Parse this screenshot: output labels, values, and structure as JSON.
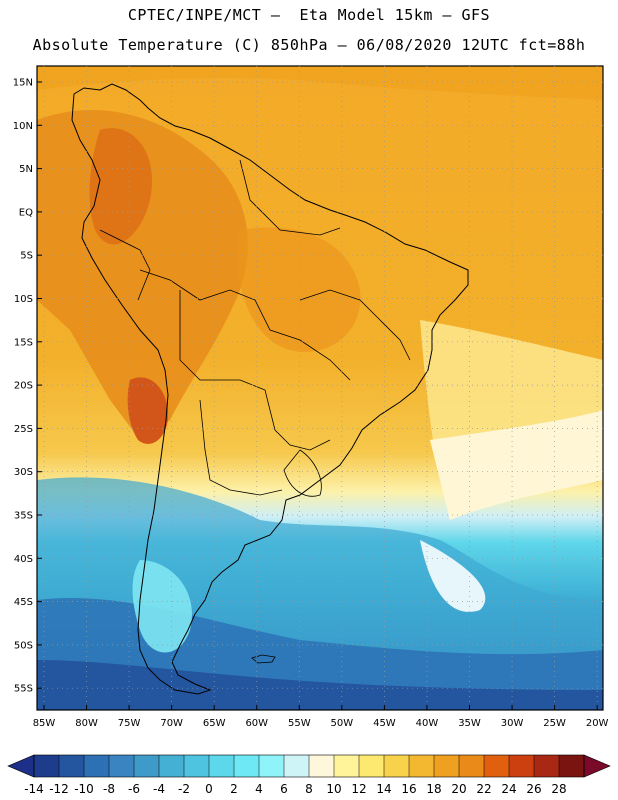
{
  "title_line1": "CPTEC/INPE/MCT –  Eta Model 15km – GFS",
  "title_line2": "Absolute Temperature (C) 850hPa – 06/08/2020 12UTC fct=88h",
  "lat_labels": [
    "15N",
    "10N",
    "5N",
    "EQ",
    "5S",
    "10S",
    "15S",
    "20S",
    "25S",
    "30S",
    "35S",
    "40S",
    "45S",
    "50S",
    "55S"
  ],
  "lon_labels": [
    "85W",
    "80W",
    "75W",
    "70W",
    "65W",
    "60W",
    "55W",
    "50W",
    "45W",
    "40W",
    "35W",
    "30W",
    "25W",
    "20W"
  ],
  "colorbar": {
    "labels": [
      "-14",
      "-12",
      "-10",
      "-8",
      "-6",
      "-4",
      "-2",
      "0",
      "2",
      "4",
      "6",
      "8",
      "10",
      "12",
      "14",
      "16",
      "18",
      "20",
      "22",
      "24",
      "26",
      "28"
    ],
    "under_color": "#1e2f8a",
    "over_color": "#7b0a2a",
    "colors": [
      "#1e3c8c",
      "#2456a0",
      "#2e70b4",
      "#3a84c2",
      "#3e9ac8",
      "#44b0d4",
      "#4ec4e0",
      "#5cd8ea",
      "#6ee8f4",
      "#8ef4fa",
      "#cff4f8",
      "#fff7dc",
      "#fff49a",
      "#fde870",
      "#f8d24a",
      "#f4b830",
      "#f0a020",
      "#ea8a18",
      "#e06010",
      "#cc4010",
      "#a82814",
      "#7a1410"
    ]
  }
}
